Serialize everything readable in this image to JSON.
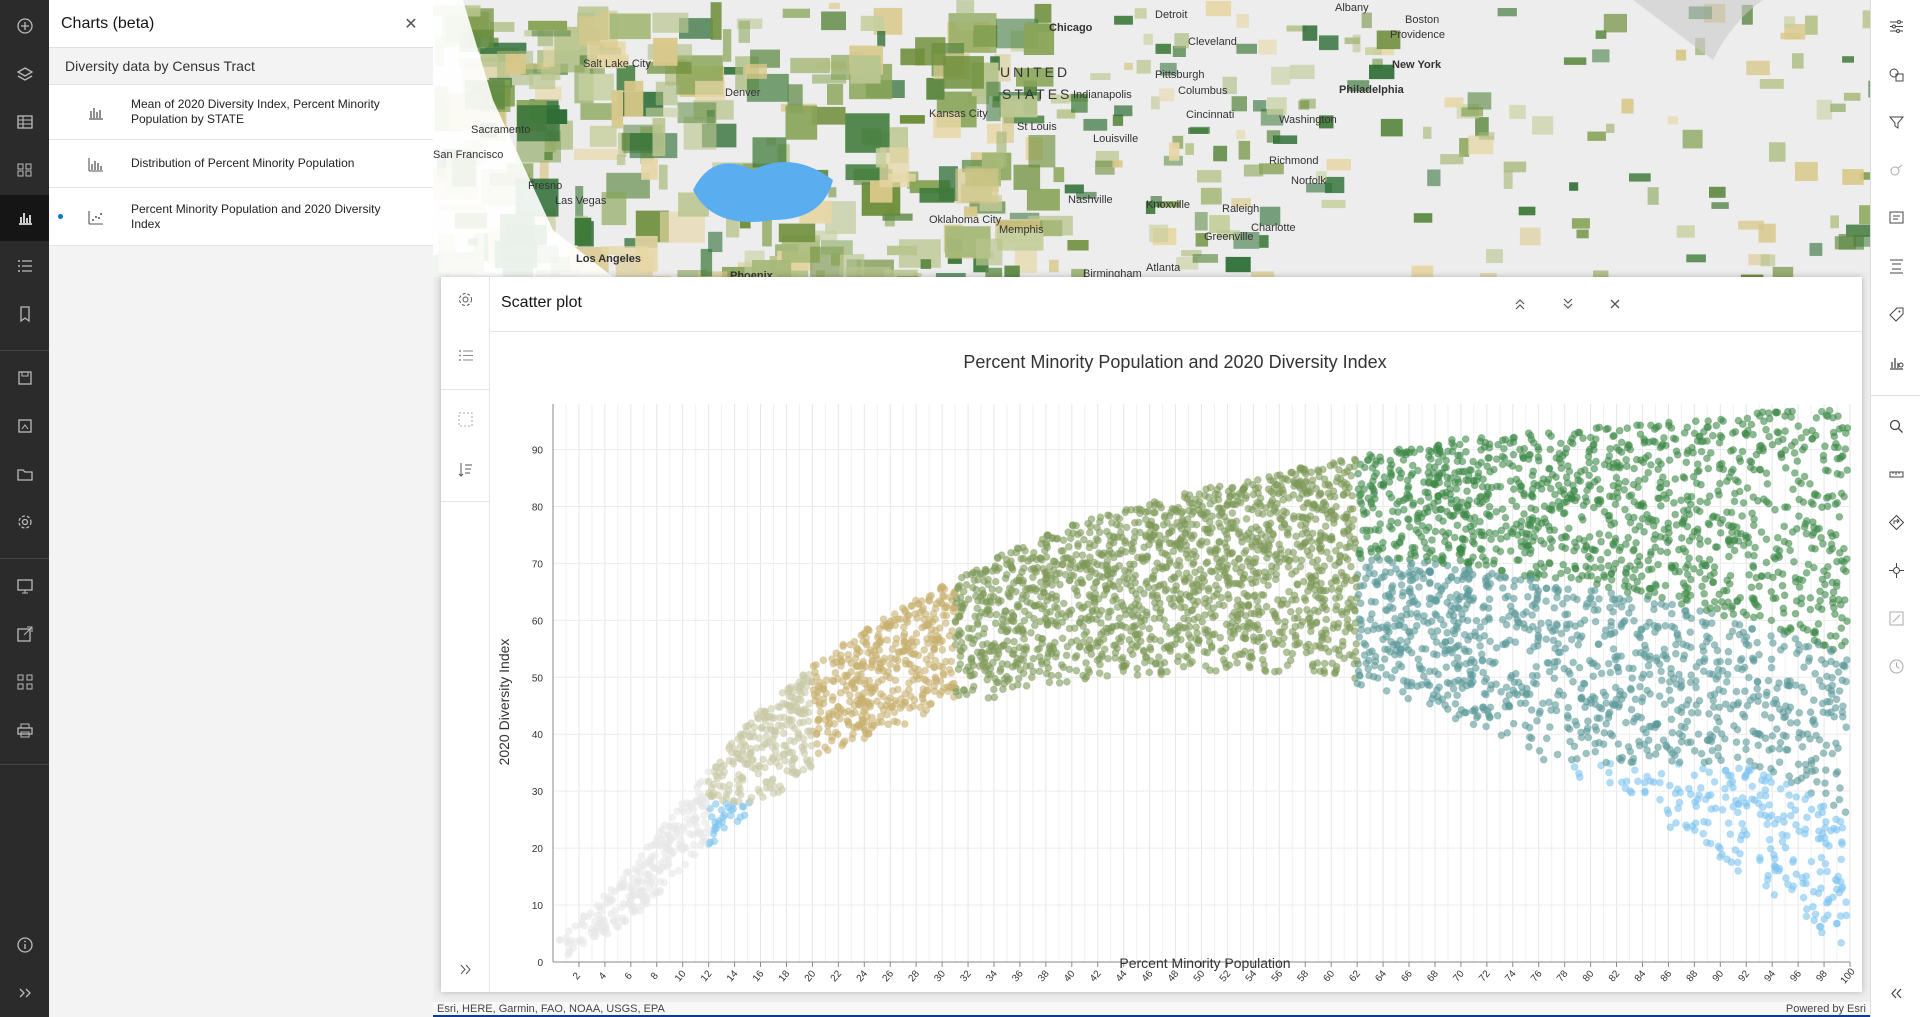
{
  "charts_panel": {
    "title": "Charts (beta)",
    "layer_name": "Diversity data by Census Tract",
    "items": [
      {
        "label": "Mean of 2020 Diversity Index, Percent Minority Population by STATE",
        "icon": "bar-chart-icon",
        "selected": false
      },
      {
        "label": "Distribution of Percent Minority Population",
        "icon": "histogram-icon",
        "selected": false
      },
      {
        "label": "Percent Minority Population and 2020 Diversity Index",
        "icon": "scatter-plot-icon",
        "selected": true
      }
    ]
  },
  "map": {
    "country_line1": "UNITED",
    "country_line2": "STATES",
    "cities": [
      "Chicago",
      "Detroit",
      "Albany",
      "Boston",
      "Cleveland",
      "Providence",
      "New York",
      "Pittsburgh",
      "Philadelphia",
      "Salt Lake City",
      "Denver",
      "Indianapolis",
      "Columbus",
      "Cincinnati",
      "Washington",
      "Kansas City",
      "St Louis",
      "Louisville",
      "Richmond",
      "Sacramento",
      "San Francisco",
      "Fresno",
      "Las Vegas",
      "Nashville",
      "Knoxville",
      "Norfolk",
      "Oklahoma City",
      "Memphis",
      "Charlotte",
      "Raleigh",
      "Greenville",
      "Los Angeles",
      "Phoenix",
      "Birmingham",
      "Atlanta"
    ],
    "attribution_left": "Esri, HERE, Garmin, FAO, NOAA, USGS, EPA",
    "attribution_right": "Powered by Esri"
  },
  "chart_panel": {
    "title": "Scatter plot"
  },
  "chart_data": {
    "type": "scatter",
    "title": "Percent Minority Population and 2020 Diversity Index",
    "xlabel": "Percent Minority Population",
    "ylabel": "2020 Diversity Index",
    "xlim": [
      0,
      100
    ],
    "ylim": [
      0,
      98
    ],
    "xticks": [
      2,
      4,
      6,
      8,
      10,
      12,
      14,
      16,
      18,
      20,
      22,
      24,
      26,
      28,
      30,
      32,
      34,
      36,
      38,
      40,
      42,
      44,
      46,
      48,
      50,
      52,
      54,
      56,
      58,
      60,
      62,
      64,
      66,
      68,
      70,
      72,
      74,
      76,
      78,
      80,
      82,
      84,
      86,
      88,
      90,
      92,
      94,
      96,
      98,
      100
    ],
    "yticks": [
      0,
      10,
      20,
      30,
      40,
      50,
      60,
      70,
      80,
      90
    ],
    "grid": true,
    "legend": "none",
    "envelope": {
      "description_points_upper": [
        [
          0,
          3
        ],
        [
          5,
          14
        ],
        [
          10,
          28
        ],
        [
          15,
          42
        ],
        [
          20,
          52
        ],
        [
          25,
          60
        ],
        [
          30,
          66
        ],
        [
          35,
          72
        ],
        [
          40,
          77
        ],
        [
          45,
          80
        ],
        [
          50,
          83
        ],
        [
          55,
          86
        ],
        [
          60,
          88
        ],
        [
          65,
          90
        ],
        [
          70,
          92
        ],
        [
          75,
          93
        ],
        [
          80,
          94
        ],
        [
          85,
          95
        ],
        [
          90,
          96
        ],
        [
          95,
          97
        ],
        [
          100,
          97
        ]
      ],
      "description_points_lower": [
        [
          0,
          0
        ],
        [
          5,
          5
        ],
        [
          10,
          16
        ],
        [
          15,
          26
        ],
        [
          20,
          34
        ],
        [
          25,
          40
        ],
        [
          30,
          44
        ],
        [
          35,
          47
        ],
        [
          40,
          49
        ],
        [
          45,
          50
        ],
        [
          50,
          51
        ],
        [
          55,
          51
        ],
        [
          60,
          50
        ],
        [
          65,
          47
        ],
        [
          70,
          42
        ],
        [
          75,
          37
        ],
        [
          80,
          31
        ],
        [
          85,
          25
        ],
        [
          90,
          18
        ],
        [
          95,
          10
        ],
        [
          100,
          1
        ]
      ]
    },
    "color_bands": [
      {
        "x_from": 0,
        "x_to": 12,
        "color": "#e8e8e8"
      },
      {
        "x_from": 12,
        "x_to": 20,
        "color": "#c9c9a8"
      },
      {
        "x_from": 20,
        "x_to": 31,
        "color": "#c8b070"
      },
      {
        "x_from": 31,
        "x_to": 62,
        "color": "#7f9a5a"
      },
      {
        "x_from": 62,
        "x_to": 100,
        "color": "#3f8a4a"
      }
    ],
    "low_color": "#7fc4f0",
    "mid_color": "#5e9a9a"
  }
}
